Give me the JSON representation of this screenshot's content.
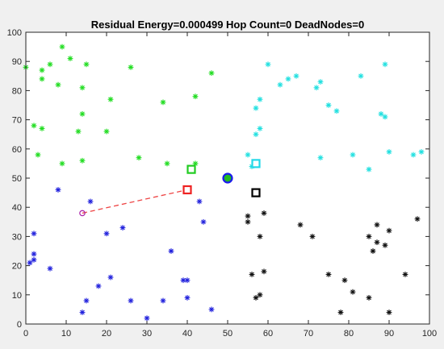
{
  "chart_data": {
    "type": "scatter",
    "title": "Residual Energy=0.000499 Hop Count=0 DeadNodes=0",
    "xlabel": "",
    "ylabel": "",
    "xlim": [
      0,
      100
    ],
    "ylim": [
      0,
      100
    ],
    "x_ticks": [
      "0",
      "10",
      "20",
      "30",
      "40",
      "50",
      "60",
      "70",
      "80",
      "90",
      "100"
    ],
    "y_ticks": [
      "0",
      "10",
      "20",
      "30",
      "40",
      "50",
      "60",
      "70",
      "80",
      "90",
      "100"
    ],
    "grid": false,
    "series": [
      {
        "color": "#22dd22",
        "marker": "asterisk",
        "points": [
          [
            0,
            88
          ],
          [
            4,
            87
          ],
          [
            4,
            84
          ],
          [
            6,
            89
          ],
          [
            8,
            82
          ],
          [
            9,
            95
          ],
          [
            11,
            91
          ],
          [
            14,
            81
          ],
          [
            15,
            89
          ],
          [
            26,
            88
          ],
          [
            46,
            86
          ],
          [
            21,
            77
          ],
          [
            34,
            76
          ],
          [
            42,
            78
          ],
          [
            2,
            68
          ],
          [
            4,
            67
          ],
          [
            13,
            66
          ],
          [
            14,
            72
          ],
          [
            20,
            66
          ],
          [
            3,
            58
          ],
          [
            9,
            55
          ],
          [
            14,
            56
          ],
          [
            28,
            57
          ],
          [
            35,
            55
          ],
          [
            42,
            55
          ]
        ]
      },
      {
        "color": "#22e0e0",
        "marker": "asterisk",
        "points": [
          [
            60,
            89
          ],
          [
            63,
            82
          ],
          [
            65,
            84
          ],
          [
            67,
            85
          ],
          [
            57,
            74
          ],
          [
            58,
            77
          ],
          [
            57,
            65
          ],
          [
            58,
            67
          ],
          [
            72,
            81
          ],
          [
            73,
            83
          ],
          [
            75,
            75
          ],
          [
            77,
            73
          ],
          [
            83,
            85
          ],
          [
            89,
            89
          ],
          [
            88,
            72
          ],
          [
            89,
            71
          ],
          [
            55,
            58
          ],
          [
            56,
            54
          ],
          [
            73,
            57
          ],
          [
            81,
            58
          ],
          [
            85,
            53
          ],
          [
            90,
            59
          ],
          [
            96,
            58
          ],
          [
            98,
            59
          ]
        ]
      },
      {
        "color": "#2222dd",
        "marker": "asterisk",
        "points": [
          [
            8,
            46
          ],
          [
            16,
            42
          ],
          [
            43,
            42
          ],
          [
            44,
            35
          ],
          [
            24,
            33
          ],
          [
            20,
            31
          ],
          [
            2,
            31
          ],
          [
            2,
            24
          ],
          [
            1,
            21
          ],
          [
            2,
            22
          ],
          [
            6,
            19
          ],
          [
            21,
            16
          ],
          [
            18,
            13
          ],
          [
            15,
            8
          ],
          [
            14,
            4
          ],
          [
            26,
            8
          ],
          [
            30,
            2
          ],
          [
            36,
            25
          ],
          [
            39,
            15
          ],
          [
            40,
            15
          ],
          [
            40,
            9
          ],
          [
            34,
            8
          ],
          [
            46,
            5
          ]
        ]
      },
      {
        "color": "#111111",
        "marker": "asterisk",
        "points": [
          [
            55,
            37
          ],
          [
            55,
            35
          ],
          [
            59,
            38
          ],
          [
            58,
            30
          ],
          [
            56,
            17
          ],
          [
            59,
            18
          ],
          [
            57,
            9
          ],
          [
            58,
            10
          ],
          [
            68,
            34
          ],
          [
            71,
            30
          ],
          [
            75,
            17
          ],
          [
            79,
            15
          ],
          [
            78,
            4
          ],
          [
            81,
            11
          ],
          [
            85,
            9
          ],
          [
            85,
            30
          ],
          [
            86,
            25
          ],
          [
            87,
            28
          ],
          [
            87,
            34
          ],
          [
            89,
            27
          ],
          [
            90,
            32
          ],
          [
            90,
            4
          ],
          [
            94,
            17
          ],
          [
            97,
            36
          ]
        ]
      }
    ],
    "cluster_heads": [
      {
        "x": 41,
        "y": 53,
        "color": "#22cc22"
      },
      {
        "x": 57,
        "y": 55,
        "color": "#22d8e8"
      },
      {
        "x": 40,
        "y": 46,
        "color": "#ee2222"
      },
      {
        "x": 57,
        "y": 45,
        "color": "#000000"
      }
    ],
    "base_station": {
      "x": 50,
      "y": 50,
      "fill": "#22bb22",
      "edge": "#1a1aee"
    },
    "route": {
      "from": [
        14,
        38
      ],
      "to": [
        40,
        46
      ],
      "color": "#ee4444",
      "style": "dashed",
      "source_marker_color": "#aa22aa"
    }
  }
}
